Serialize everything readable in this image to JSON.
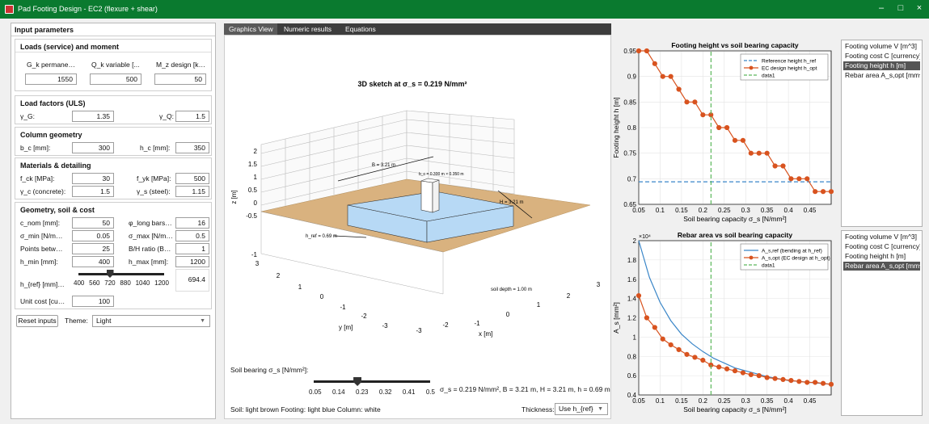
{
  "window": {
    "title": "Pad Footing Design - EC2 (flexure + shear)",
    "min": "–",
    "max": "□",
    "close": "×"
  },
  "left": {
    "title": "Input parameters",
    "loads": {
      "header": "Loads (service) and moment",
      "gk_label": "G_k permane…",
      "qk_label": "Q_k variable [...",
      "mz_label": "M_z design [k…",
      "gk": "1550",
      "qk": "500",
      "mz": "50"
    },
    "factors": {
      "header": "Load factors (ULS)",
      "gg_label": "γ_G:",
      "gg": "1.35",
      "gq_label": "γ_Q:",
      "gq": "1.5"
    },
    "column": {
      "header": "Column geometry",
      "bc_label": "b_c [mm]:",
      "bc": "300",
      "hc_label": "h_c [mm]:",
      "hc": "350"
    },
    "materials": {
      "header": "Materials & detailing",
      "fck_label": "f_ck [MPa]:",
      "fck": "30",
      "fyk_label": "f_yk [MPa]:",
      "fyk": "500",
      "gc_label": "γ_c (concrete):",
      "gc": "1.5",
      "gs_label": "γ_s (steel):",
      "gs": "1.15"
    },
    "geometry": {
      "header": "Geometry, soil & cost",
      "cnom_label": "c_nom [mm]:",
      "cnom": "50",
      "phi_label": "φ_long bars…",
      "phi": "16",
      "smin_label": "σ_min [N/m…",
      "smin": "0.05",
      "smax_label": "σ_max [N/m…",
      "smax": "0.5",
      "points_label": "Points betw…",
      "points": "25",
      "bh_label": "B/H ratio (B…",
      "bh": "1",
      "hmin_label": "h_min [mm]:",
      "hmin": "400",
      "hmax_label": "h_max [mm]:",
      "hmax": "1200",
      "href_label": "h_{ref} [mm]…",
      "href": "694.4",
      "href_level": 0.368,
      "href_ticks": [
        "400",
        "560",
        "720",
        "880",
        "1040",
        "1200"
      ],
      "unit_label": "Unit cost [cu…",
      "unit": "100"
    },
    "reset": "Reset inputs",
    "theme_label": "Theme:",
    "theme": "Light"
  },
  "tabs": [
    "Graphics View",
    "Numeric results",
    "Equations"
  ],
  "sketch": {
    "title": "3D sketch at σ_s = 0.219 N/mm²",
    "label_B": "B = 3.21 m",
    "label_H": "H = 3.21 m",
    "label_bc": "b_c = 0.300 m × 0.350 m",
    "label_href": "h_ref = 0.69 m",
    "label_soil": "soil depth = 1.00 m",
    "zlabel": "z [m]",
    "xlabel": "x [m]",
    "ylabel": "y [m]",
    "zticks": [
      "2",
      "1.5",
      "1",
      "0.5",
      "0",
      "-0.5",
      "-1"
    ],
    "xticks": [
      "3",
      "2",
      "1",
      "0",
      "-1",
      "-2",
      "-3"
    ],
    "yticks": [
      "3",
      "2",
      "1",
      "0",
      "-1",
      "-2",
      "-3"
    ]
  },
  "slider": {
    "label": "Soil bearing σ_s [N/mm²]:",
    "ticks": [
      "0.05",
      "0.14",
      "0.23",
      "0.32",
      "0.41",
      "0.5"
    ],
    "value": 0.219,
    "status": "σ_s = 0.219 N/mm²,  B = 3.21 m,  H = 3.21 m,  h = 0.69 m"
  },
  "legend_text": "Soil: light brown   Footing: light blue   Column: white",
  "thickness": {
    "label": "Thickness:",
    "value": "Use h_{ref}"
  },
  "list1": {
    "items": [
      "Footing volume V [m^3]",
      "Footing cost C [currency]",
      "Footing height h [m]",
      "Rebar area A_s,opt [mm^2]"
    ],
    "selected": 2
  },
  "list2": {
    "items": [
      "Footing volume V [m^3]",
      "Footing cost C [currency]",
      "Footing height h [m]",
      "Rebar area A_s,opt [mm^2]"
    ],
    "selected": 3
  },
  "colors": {
    "title_bar": "#0a7a2f",
    "soil": "#d9b27f",
    "footing": "#b7d9f5",
    "ref_line": "#3a86c8",
    "design_line": "#d8531f",
    "data1_line": "#5cb85c"
  },
  "chart_data": [
    {
      "type": "line",
      "title": "Footing height vs soil bearing capacity",
      "xlabel": "Soil bearing capacity σ_s [N/mm²]",
      "ylabel": "Footing height h [m]",
      "xlim": [
        0.05,
        0.5
      ],
      "ylim": [
        0.65,
        0.95
      ],
      "xticks": [
        0.05,
        0.1,
        0.15,
        0.2,
        0.25,
        0.3,
        0.35,
        0.4,
        0.45
      ],
      "yticks": [
        0.65,
        0.7,
        0.75,
        0.8,
        0.85,
        0.9,
        0.95
      ],
      "grid": true,
      "legend": "top-right",
      "series": [
        {
          "name": "Reference height h_ref",
          "style": "dashed",
          "x": [
            0.05,
            0.5
          ],
          "y": [
            0.694,
            0.694
          ]
        },
        {
          "name": "EC design height h_opt",
          "style": "markers",
          "x": [
            0.05,
            0.06875,
            0.0875,
            0.10625,
            0.125,
            0.14375,
            0.1625,
            0.18125,
            0.2,
            0.21875,
            0.2375,
            0.25625,
            0.275,
            0.29375,
            0.3125,
            0.33125,
            0.35,
            0.36875,
            0.3875,
            0.40625,
            0.425,
            0.44375,
            0.4625,
            0.48125,
            0.5
          ],
          "y": [
            0.95,
            0.95,
            0.925,
            0.9,
            0.9,
            0.875,
            0.85,
            0.85,
            0.825,
            0.825,
            0.8,
            0.8,
            0.775,
            0.775,
            0.75,
            0.75,
            0.75,
            0.725,
            0.725,
            0.7,
            0.7,
            0.7,
            0.675,
            0.675,
            0.675
          ]
        },
        {
          "name": "data1",
          "style": "vline",
          "x": [
            0.219,
            0.219
          ],
          "y": [
            0.65,
            0.95
          ]
        }
      ]
    },
    {
      "type": "line",
      "title": "Rebar area vs soil bearing capacity",
      "xlabel": "Soil bearing capacity σ_s [N/mm²]",
      "ylabel": "A_s [mm²]",
      "yexponent": "×10⁴",
      "xlim": [
        0.05,
        0.5
      ],
      "ylim": [
        0.4,
        2.0
      ],
      "xticks": [
        0.05,
        0.1,
        0.15,
        0.2,
        0.25,
        0.3,
        0.35,
        0.4,
        0.45
      ],
      "yticks": [
        0.4,
        0.6,
        0.8,
        1.0,
        1.2,
        1.4,
        1.6,
        1.8,
        2.0
      ],
      "grid": true,
      "legend": "top-right",
      "series": [
        {
          "name": "A_s,ref (bending at h_ref)",
          "style": "solid",
          "x": [
            0.05,
            0.075,
            0.1,
            0.125,
            0.15,
            0.175,
            0.2,
            0.225,
            0.25,
            0.275,
            0.3,
            0.325,
            0.35,
            0.375,
            0.4,
            0.425,
            0.45,
            0.475,
            0.5
          ],
          "y": [
            2.0,
            1.62,
            1.36,
            1.17,
            1.03,
            0.93,
            0.85,
            0.78,
            0.73,
            0.68,
            0.65,
            0.62,
            0.59,
            0.57,
            0.55,
            0.54,
            0.53,
            0.52,
            0.51
          ]
        },
        {
          "name": "A_s,opt (EC design at h_opt)",
          "style": "markers",
          "x": [
            0.05,
            0.06875,
            0.0875,
            0.10625,
            0.125,
            0.14375,
            0.1625,
            0.18125,
            0.2,
            0.21875,
            0.2375,
            0.25625,
            0.275,
            0.29375,
            0.3125,
            0.33125,
            0.35,
            0.36875,
            0.3875,
            0.40625,
            0.425,
            0.44375,
            0.4625,
            0.48125,
            0.5
          ],
          "y": [
            1.43,
            1.2,
            1.1,
            0.98,
            0.92,
            0.87,
            0.82,
            0.79,
            0.76,
            0.71,
            0.69,
            0.67,
            0.65,
            0.63,
            0.61,
            0.6,
            0.58,
            0.57,
            0.56,
            0.55,
            0.54,
            0.53,
            0.53,
            0.52,
            0.51
          ]
        },
        {
          "name": "data1",
          "style": "vline",
          "x": [
            0.219,
            0.219
          ],
          "y": [
            0.4,
            2.0
          ]
        }
      ]
    }
  ]
}
